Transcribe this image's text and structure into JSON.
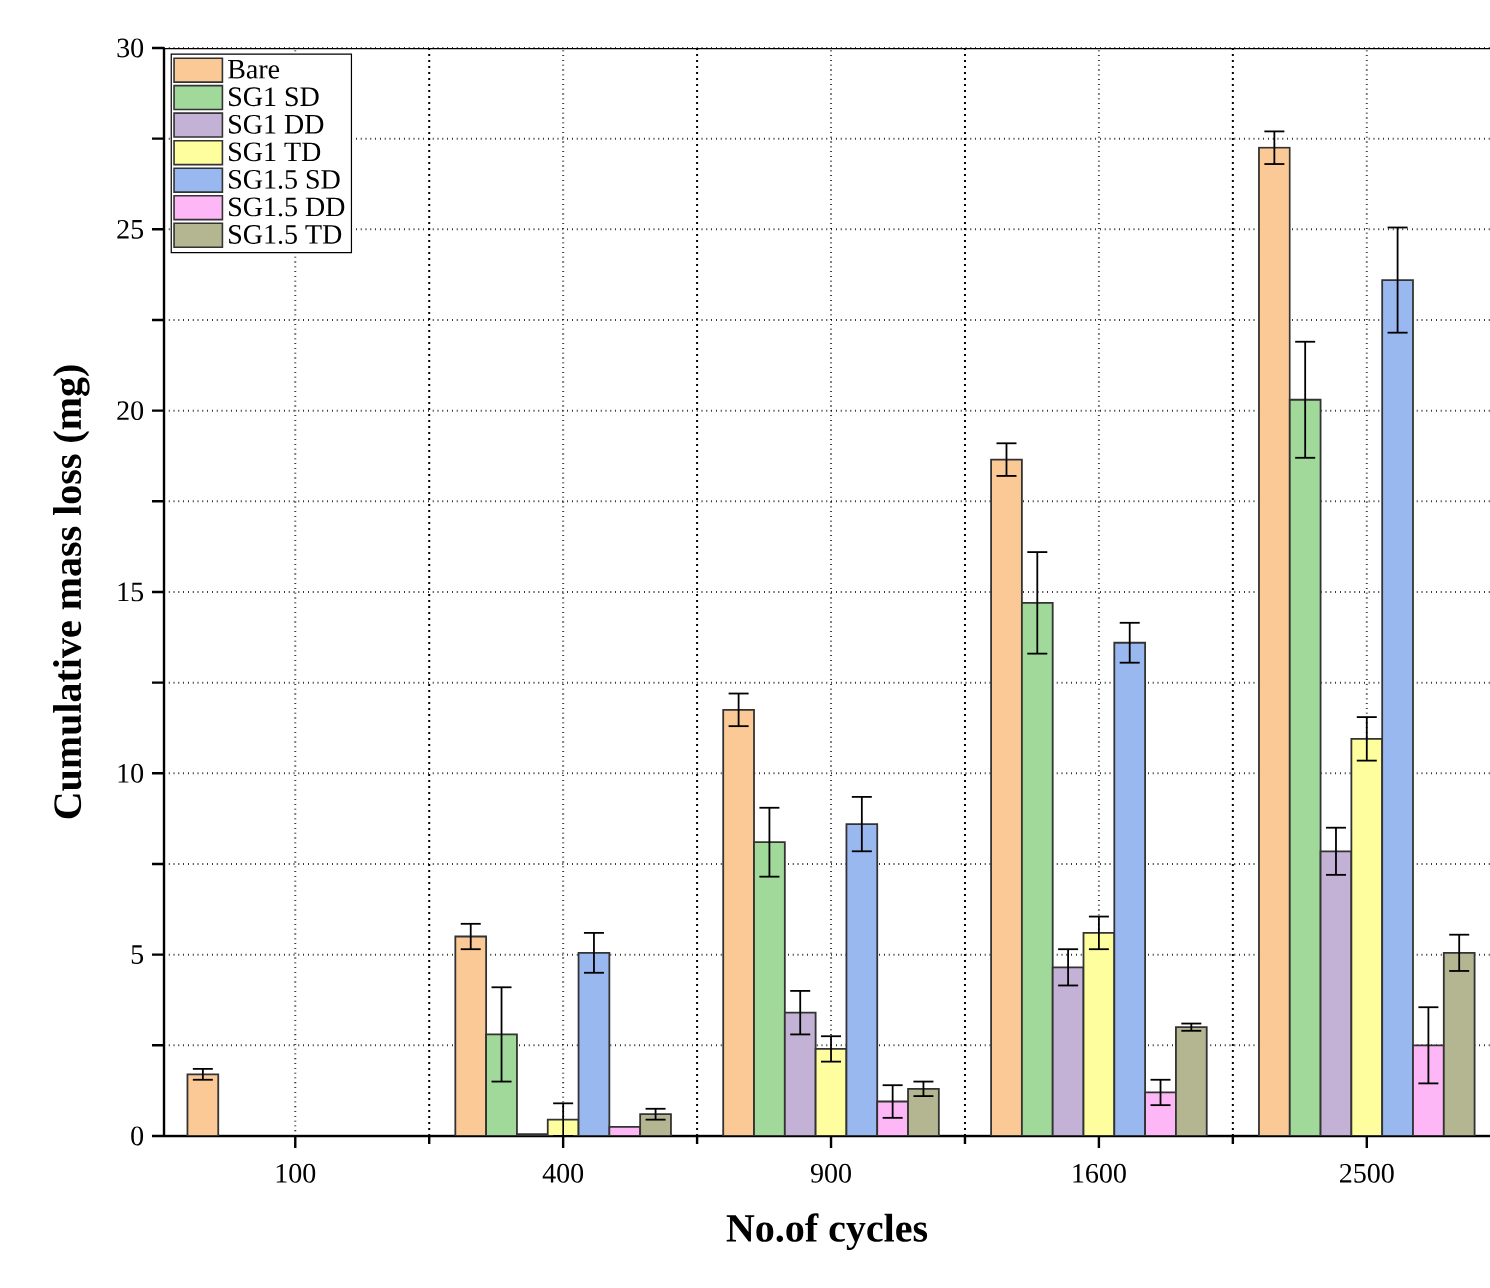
{
  "chart_data": {
    "type": "bar",
    "xlabel": "No.of cycles",
    "ylabel": "Cumulative mass loss (mg)",
    "categories": [
      "100",
      "400",
      "900",
      "1600",
      "2500"
    ],
    "series": [
      {
        "name": "Bare",
        "color": "#fbc996",
        "values": [
          1.7,
          5.5,
          11.75,
          18.65,
          27.25
        ],
        "errors": [
          0.15,
          0.35,
          0.45,
          0.45,
          0.45
        ]
      },
      {
        "name": "SG1 SD",
        "color": "#a0d99a",
        "values": [
          null,
          2.8,
          8.1,
          14.7,
          20.3
        ],
        "errors": [
          null,
          1.3,
          0.95,
          1.4,
          1.6
        ]
      },
      {
        "name": "SG1 DD",
        "color": "#c3b1d6",
        "values": [
          null,
          0.05,
          3.4,
          4.65,
          7.85
        ],
        "errors": [
          null,
          null,
          0.6,
          0.5,
          0.65
        ]
      },
      {
        "name": "SG1 TD",
        "color": "#fefe9e",
        "values": [
          null,
          0.45,
          2.4,
          5.6,
          10.95
        ],
        "errors": [
          null,
          0.45,
          0.35,
          0.45,
          0.6
        ]
      },
      {
        "name": "SG1.5 SD",
        "color": "#9ab8f0",
        "values": [
          null,
          5.05,
          8.6,
          13.6,
          23.6
        ],
        "errors": [
          null,
          0.55,
          0.75,
          0.55,
          1.45
        ]
      },
      {
        "name": "SG1.5 DD",
        "color": "#fdb6f6",
        "values": [
          null,
          0.25,
          0.95,
          1.2,
          2.5
        ],
        "errors": [
          null,
          null,
          0.45,
          0.35,
          1.05
        ]
      },
      {
        "name": "SG1.5 TD",
        "color": "#b3b690",
        "values": [
          null,
          0.6,
          1.3,
          3.0,
          5.05
        ],
        "errors": [
          null,
          0.15,
          0.2,
          0.1,
          0.5
        ]
      }
    ],
    "ylim": [
      0,
      30
    ],
    "yticks": [
      0,
      {
        "value": 2.5,
        "label": null
      },
      5,
      {
        "value": 7.5,
        "label": null
      },
      10,
      {
        "value": 12.5,
        "label": null
      },
      15,
      {
        "value": 17.5,
        "label": null
      },
      20,
      {
        "value": 22.5,
        "label": null
      },
      25,
      {
        "value": 27.5,
        "label": null
      },
      30
    ],
    "grid": true,
    "legend": "top left"
  }
}
